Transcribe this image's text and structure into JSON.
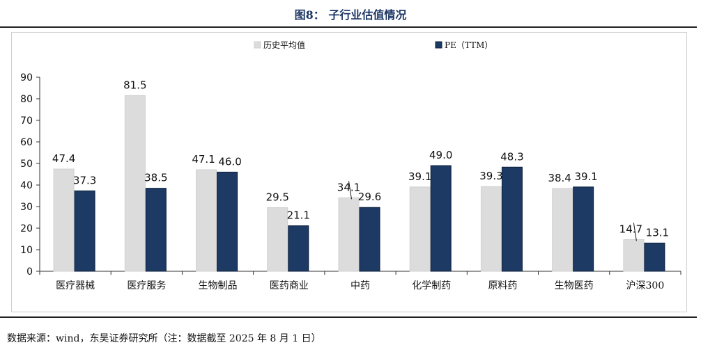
{
  "header": {
    "title": "图8：  子行业估值情况"
  },
  "footer": {
    "source": "数据来源：wind，东吴证券研究所（注：数据截至 2025 年 8 月 1 日）"
  },
  "colors": {
    "historical": "#dcdcdc",
    "pe": "#1c3a63",
    "title": "#1c3664"
  },
  "chart_data": {
    "type": "bar",
    "title": "",
    "xlabel": "",
    "ylabel": "",
    "ylim": [
      0,
      90
    ],
    "yticks": [
      0,
      10,
      20,
      30,
      40,
      50,
      60,
      70,
      80,
      90
    ],
    "grid": false,
    "legend_position": "top-center",
    "categories": [
      "医疗器械",
      "医疗服务",
      "生物制品",
      "医药商业",
      "中药",
      "化学制药",
      "原料药",
      "生物医药",
      "沪深300"
    ],
    "series": [
      {
        "name": "历史平均值",
        "values": [
          47.4,
          81.5,
          47.1,
          29.5,
          34.1,
          39.1,
          39.3,
          38.4,
          14.7
        ]
      },
      {
        "name": "PE（TTM）",
        "values": [
          37.3,
          38.5,
          46.0,
          21.1,
          29.6,
          49.0,
          48.3,
          39.1,
          13.1
        ]
      }
    ]
  }
}
